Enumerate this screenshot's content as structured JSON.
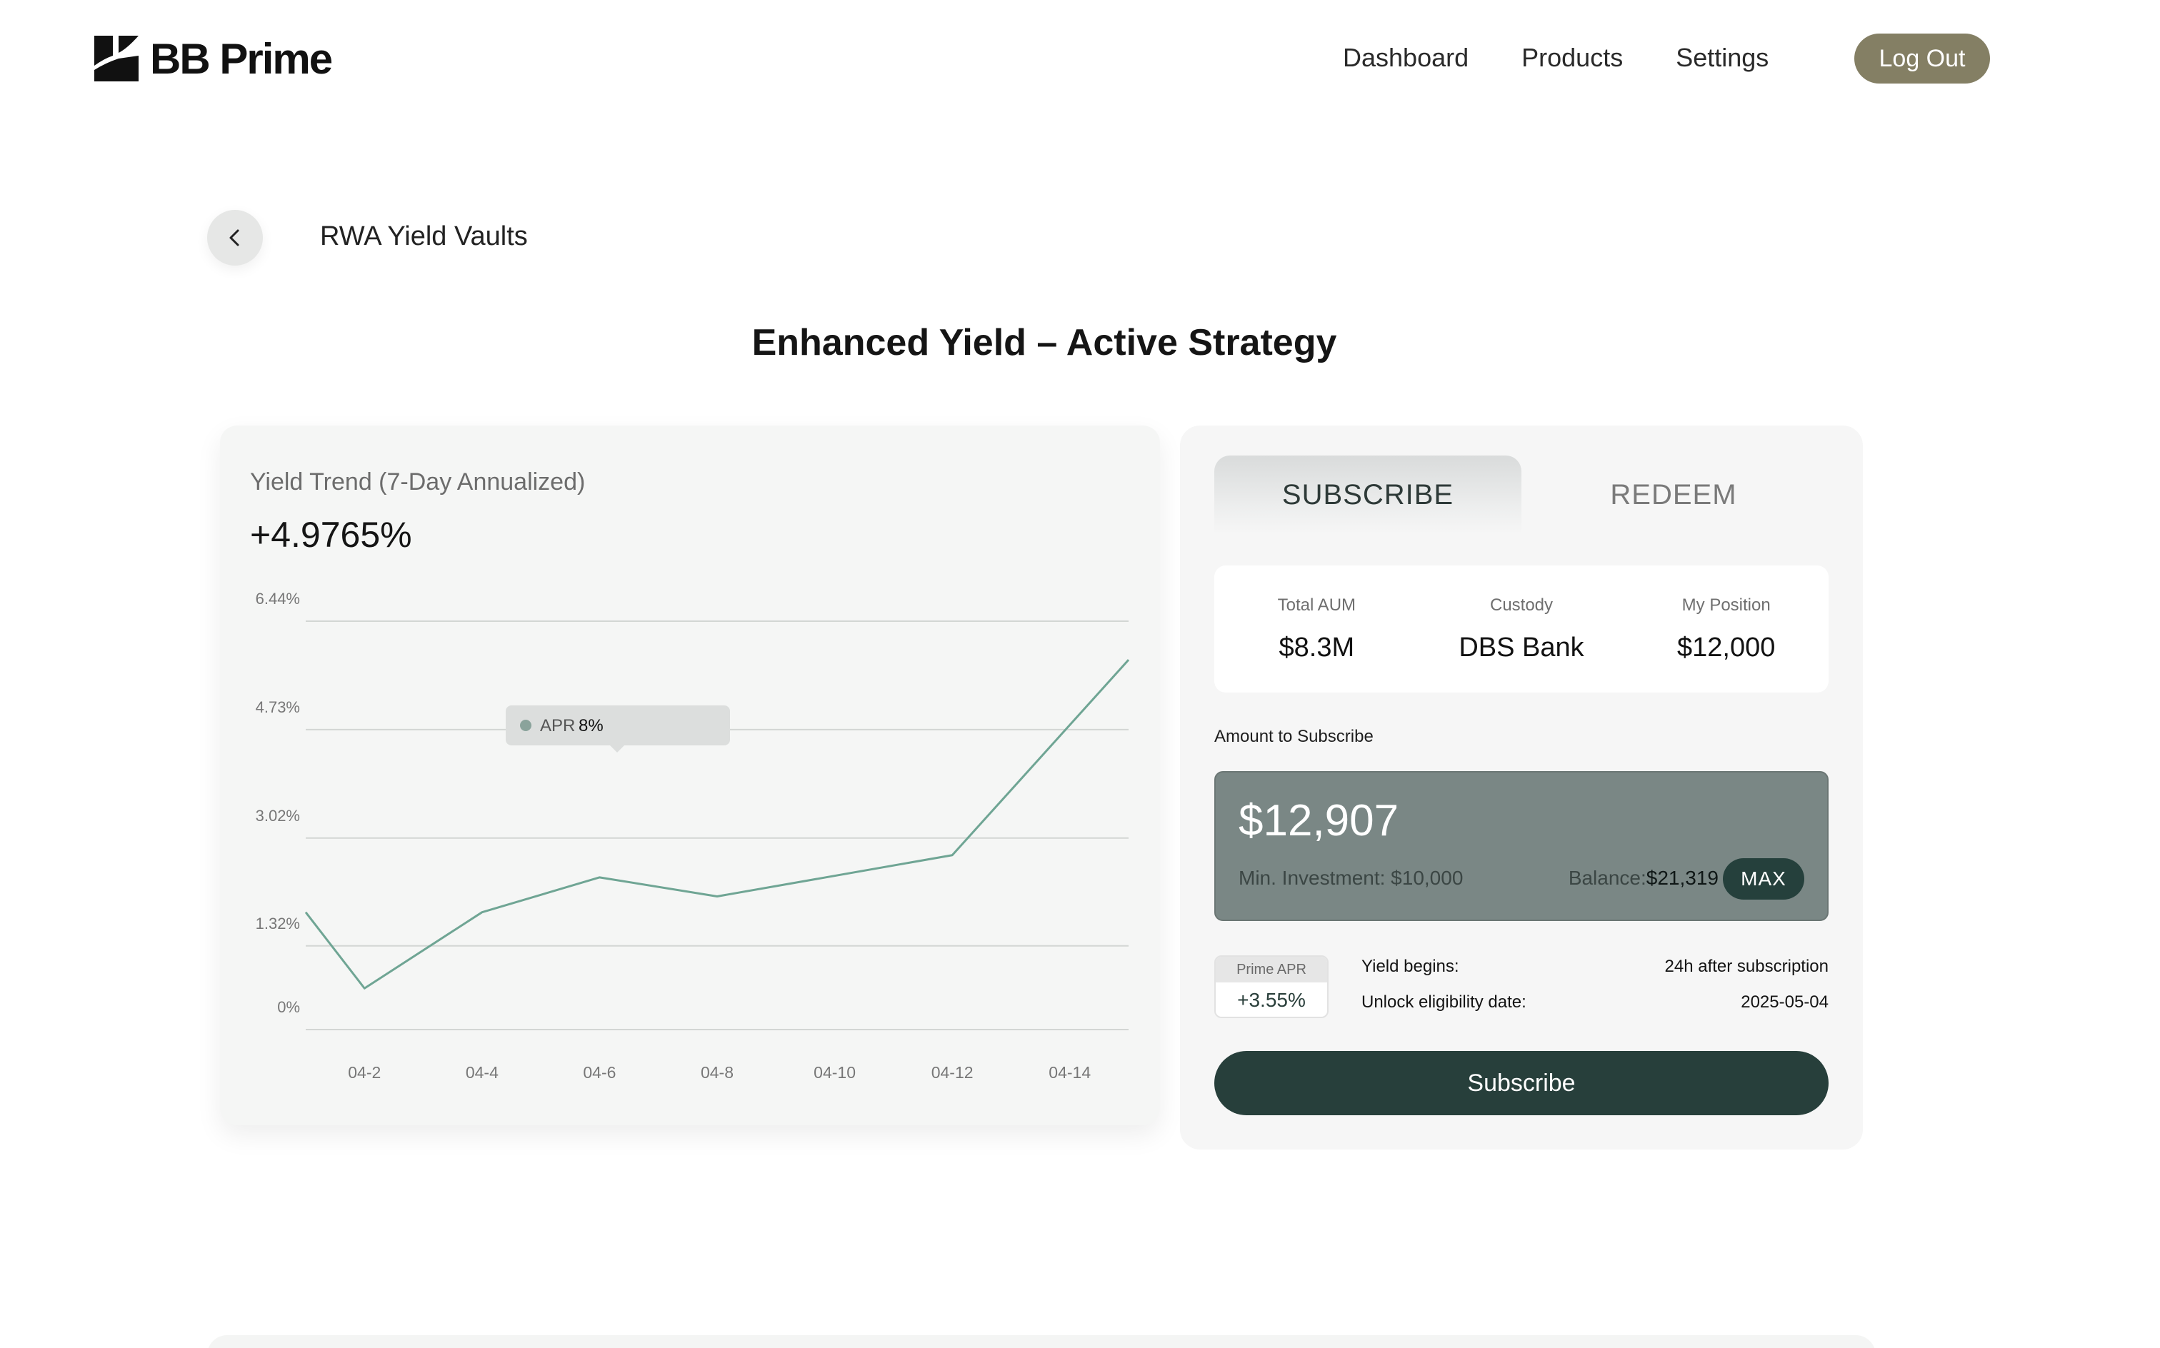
{
  "brand": {
    "name": "BB Prime"
  },
  "nav": {
    "items": [
      {
        "label": "Dashboard"
      },
      {
        "label": "Products"
      },
      {
        "label": "Settings"
      }
    ],
    "logout_label": "Log Out",
    "logout_color": "#847f64"
  },
  "breadcrumb": {
    "back_icon": "chevron-left-icon",
    "label": "RWA Yield Vaults"
  },
  "page": {
    "title": "Enhanced Yield – Active Strategy"
  },
  "chart_card": {
    "label": "Yield Trend (7-Day Annualized)",
    "value": "+4.9765%"
  },
  "chart_data": {
    "type": "line",
    "title": "Yield Trend (7-Day Annualized)",
    "xlabel": "",
    "ylabel": "",
    "y_tick_labels": [
      "0%",
      "1.32%",
      "3.02%",
      "4.73%",
      "6.44%"
    ],
    "y_ticks": [
      0,
      1.32,
      3.02,
      4.73,
      6.44
    ],
    "ylim": [
      0,
      6.44
    ],
    "x_tick_labels": [
      "04-2",
      "04-4",
      "04-6",
      "04-8",
      "04-10",
      "04-12",
      "04-14"
    ],
    "grid": true,
    "line_color": "#6fa594",
    "series": [
      {
        "x": [
          "04-1",
          "04-2",
          "04-4",
          "04-6",
          "04-8",
          "04-12",
          "04-15"
        ],
        "values": [
          1.85,
          0.65,
          1.85,
          2.4,
          2.1,
          2.75,
          5.83
        ]
      }
    ],
    "tooltip": {
      "label": "APR",
      "value": "8%"
    }
  },
  "tabs": {
    "subscribe": "SUBSCRIBE",
    "redeem": "REDEEM",
    "active": "subscribe"
  },
  "stats": [
    {
      "label": "Total AUM",
      "value": "$8.3M"
    },
    {
      "label": "Custody",
      "value": "DBS Bank"
    },
    {
      "label": "My Position",
      "value": "$12,000"
    }
  ],
  "amount": {
    "label": "Amount to Subscribe",
    "value": "$12,907",
    "min_investment": "Min. Investment: $10,000",
    "balance_label": "Balance:",
    "balance_value": "$21,319",
    "max_label": "MAX"
  },
  "prime_apr": {
    "label": "Prime APR",
    "value": "+3.55%"
  },
  "info": [
    {
      "label": "Yield begins:",
      "value": "24h after subscription"
    },
    {
      "label": "Unlock eligibility date:",
      "value": "2025-05-04"
    }
  ],
  "subscribe_button": "Subscribe",
  "colors": {
    "primary_dark": "#273f3b",
    "amount_box": "#7a8785",
    "chart_line": "#6fa594"
  }
}
